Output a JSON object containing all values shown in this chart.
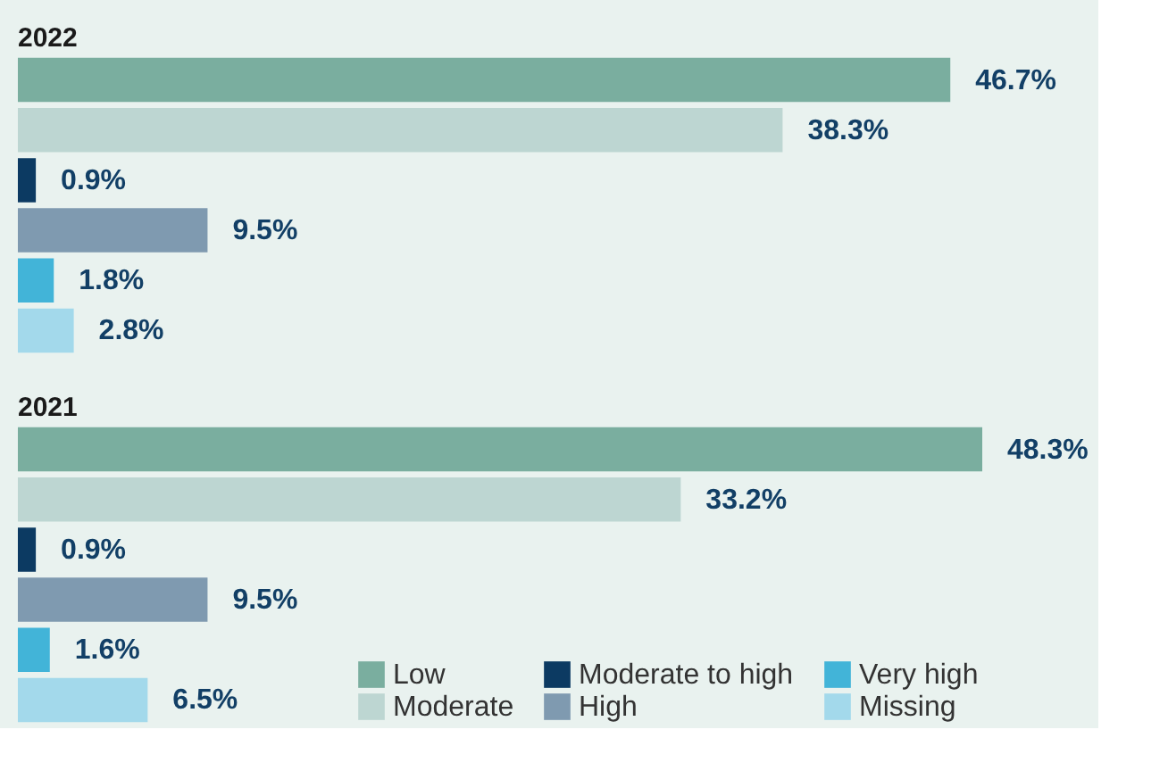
{
  "chart_data": [
    {
      "type": "bar",
      "orientation": "horizontal",
      "title": "2022",
      "categories": [
        null
      ],
      "legend": false,
      "grid": false,
      "tick_labels": false,
      "series": [
        {
          "color": "#7aae9f",
          "values": [
            46.7
          ],
          "value_labels": [
            "46.7%"
          ]
        },
        {
          "color": "#bdd6d2",
          "values": [
            38.3
          ],
          "value_labels": [
            "38.3%"
          ]
        },
        {
          "color": "#0c3a62",
          "values": [
            0.9
          ],
          "value_labels": [
            "0.9%"
          ]
        },
        {
          "color": "#7f9ab0",
          "values": [
            9.5
          ],
          "value_labels": [
            "9.5%"
          ]
        },
        {
          "color": "#42b4d8",
          "values": [
            1.8
          ],
          "value_labels": [
            "1.8%"
          ]
        },
        {
          "color": "#a3d9eb",
          "values": [
            2.8
          ],
          "value_labels": [
            "2.8%"
          ]
        }
      ]
    },
    {
      "type": "bar",
      "orientation": "horizontal",
      "title": "2021",
      "categories": [
        null
      ],
      "legend": "bottom right",
      "grid": false,
      "tick_labels": false,
      "series": [
        {
          "name": "Low",
          "color": "#7aae9f",
          "values": [
            48.3
          ],
          "value_labels": [
            "48.3%"
          ]
        },
        {
          "name": "Moderate",
          "color": "#bdd6d2",
          "values": [
            33.2
          ],
          "value_labels": [
            "33.2%"
          ]
        },
        {
          "name": "Moderate to high",
          "color": "#0c3a62",
          "values": [
            0.9
          ],
          "value_labels": [
            "0.9%"
          ]
        },
        {
          "name": "High",
          "color": "#7f9ab0",
          "values": [
            9.5
          ],
          "value_labels": [
            "9.5%"
          ]
        },
        {
          "name": "Very high",
          "color": "#42b4d8",
          "values": [
            1.6
          ],
          "value_labels": [
            "1.6%"
          ]
        },
        {
          "name": "Missing",
          "color": "#a3d9eb",
          "values": [
            6.5
          ],
          "value_labels": [
            "6.5%"
          ]
        }
      ]
    }
  ]
}
